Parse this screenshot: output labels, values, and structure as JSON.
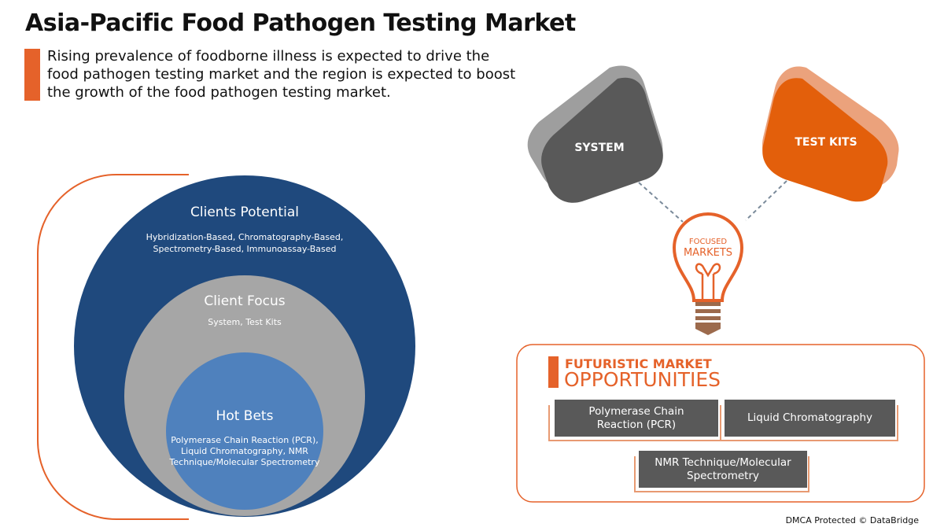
{
  "title": "Asia-Pacific Food Pathogen Testing Market",
  "subtitle": "Rising prevalence of foodborne illness is expected to drive the food pathogen testing market and the region is expected to boost the growth of the food pathogen testing market.",
  "circles": {
    "clients_potential": {
      "heading": "Clients Potential",
      "text": "Hybridization-Based, Chromatography-Based, Spectrometry-Based, Immunoassay-Based"
    },
    "client_focus": {
      "heading": "Client Focus",
      "text": "System, Test Kits"
    },
    "hot_bets": {
      "heading": "Hot Bets",
      "text": "Polymerase Chain Reaction (PCR), Liquid Chromatography, NMR Technique/Molecular Spectrometry"
    }
  },
  "focused": {
    "system": "SYSTEM",
    "test_kits": "TEST KITS",
    "bulb_line1": "FOCUSED",
    "bulb_line2": "MARKETS"
  },
  "opportunities": {
    "heading_line1": "FUTURISTIC MARKET",
    "heading_line2": "OPPORTUNITIES",
    "items": [
      "Polymerase Chain Reaction (PCR)",
      "Liquid Chromatography",
      "NMR Technique/Molecular Spectrometry"
    ]
  },
  "footer": "DMCA Protected © DataBridge",
  "colors": {
    "accent": "#e5622a",
    "navy": "#1f497d",
    "gray": "#a6a6a6",
    "blue": "#4f81bd",
    "dark": "#595959"
  }
}
